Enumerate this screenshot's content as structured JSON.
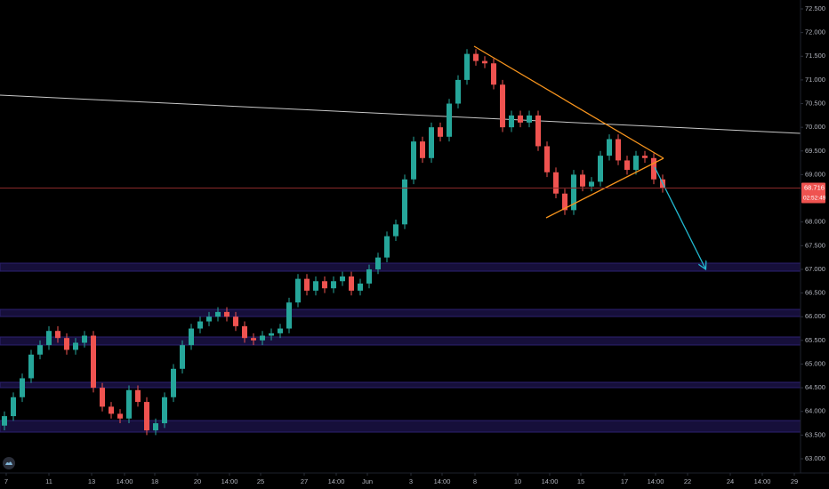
{
  "chart_data": {
    "type": "candlestick",
    "up_color": "#26a69a",
    "down_color": "#ef5350",
    "open": [
      63.7,
      63.9,
      64.3,
      64.7,
      65.2,
      65.4,
      65.7,
      65.55,
      65.3,
      65.45,
      65.6,
      64.5,
      64.1,
      63.95,
      63.85,
      64.45,
      64.2,
      63.6,
      63.75,
      64.3,
      64.9,
      65.4,
      65.75,
      65.9,
      66.0,
      66.1,
      66.0,
      65.8,
      65.55,
      65.5,
      65.6,
      65.65,
      65.75,
      66.3,
      66.8,
      66.55,
      66.75,
      66.6,
      66.75,
      66.85,
      66.55,
      66.7,
      67.0,
      67.25,
      67.7,
      67.95,
      68.9,
      69.7,
      69.35,
      70.0,
      69.8,
      70.5,
      71.0,
      71.55,
      71.4,
      71.35,
      70.9,
      70.0,
      70.25,
      70.1,
      70.25,
      69.6,
      69.05,
      68.6,
      68.25,
      69.0,
      68.75,
      68.85,
      69.4,
      69.75,
      69.3,
      69.1,
      69.4,
      69.35,
      68.9
    ],
    "high": [
      64.0,
      64.4,
      64.8,
      65.3,
      65.5,
      65.8,
      65.8,
      65.65,
      65.55,
      65.7,
      65.7,
      64.6,
      64.2,
      64.05,
      64.55,
      64.55,
      64.3,
      63.85,
      64.4,
      65.0,
      65.5,
      65.85,
      66.0,
      66.1,
      66.2,
      66.2,
      66.1,
      65.9,
      65.65,
      65.7,
      65.75,
      65.85,
      66.4,
      66.9,
      66.9,
      66.85,
      66.85,
      66.85,
      66.95,
      66.95,
      66.8,
      67.1,
      67.35,
      67.8,
      68.05,
      69.0,
      69.8,
      69.8,
      70.1,
      70.1,
      70.6,
      71.1,
      71.65,
      71.65,
      71.5,
      71.45,
      71.0,
      70.35,
      70.35,
      70.35,
      70.35,
      69.7,
      69.15,
      68.7,
      69.1,
      69.1,
      68.95,
      69.5,
      69.85,
      69.85,
      69.4,
      69.5,
      69.5,
      69.45,
      69.0
    ],
    "low": [
      63.6,
      63.8,
      64.2,
      64.6,
      65.1,
      65.3,
      65.45,
      65.2,
      65.2,
      65.35,
      64.4,
      64.0,
      63.85,
      63.75,
      63.75,
      64.1,
      63.5,
      63.5,
      63.65,
      64.2,
      64.8,
      65.3,
      65.65,
      65.8,
      65.9,
      65.9,
      65.7,
      65.45,
      65.4,
      65.4,
      65.5,
      65.55,
      65.65,
      66.2,
      66.45,
      66.45,
      66.5,
      66.5,
      66.65,
      66.45,
      66.45,
      66.6,
      66.9,
      67.15,
      67.6,
      67.85,
      68.8,
      69.25,
      69.25,
      69.7,
      69.7,
      70.4,
      70.9,
      71.3,
      71.25,
      70.8,
      69.9,
      69.9,
      70.0,
      70.0,
      69.5,
      68.95,
      68.5,
      68.15,
      68.15,
      68.65,
      68.65,
      68.75,
      69.3,
      69.2,
      69.0,
      69.0,
      69.25,
      68.8,
      68.62
    ],
    "close": [
      63.9,
      64.3,
      64.7,
      65.2,
      65.4,
      65.7,
      65.55,
      65.3,
      65.45,
      65.6,
      64.5,
      64.1,
      63.95,
      63.85,
      64.45,
      64.2,
      63.6,
      63.75,
      64.3,
      64.9,
      65.4,
      65.75,
      65.9,
      66.0,
      66.1,
      66.0,
      65.8,
      65.55,
      65.5,
      65.6,
      65.65,
      65.75,
      66.3,
      66.8,
      66.55,
      66.75,
      66.6,
      66.75,
      66.85,
      66.55,
      66.7,
      67.0,
      67.25,
      67.7,
      67.95,
      68.9,
      69.7,
      69.35,
      70.0,
      69.8,
      70.5,
      71.0,
      71.55,
      71.4,
      71.35,
      70.9,
      70.0,
      70.25,
      70.1,
      70.25,
      69.6,
      69.05,
      68.6,
      68.25,
      69.0,
      68.75,
      68.85,
      69.4,
      69.75,
      69.3,
      69.1,
      69.4,
      69.35,
      68.9,
      68.72
    ],
    "last_price": 68.716,
    "countdown": "02:52:49",
    "ylim": [
      63,
      72.5
    ],
    "yticks": [
      {
        "value": 72.5,
        "label": "72.500"
      },
      {
        "value": 72,
        "label": "72.000"
      },
      {
        "value": 71.5,
        "label": "71.500"
      },
      {
        "value": 71,
        "label": "71.000"
      },
      {
        "value": 70.5,
        "label": "70.500"
      },
      {
        "value": 70,
        "label": "70.000"
      },
      {
        "value": 69.5,
        "label": "69.500"
      },
      {
        "value": 69,
        "label": "69.000"
      },
      {
        "value": 68,
        "label": "68.000"
      },
      {
        "value": 67.5,
        "label": "67.500"
      },
      {
        "value": 67,
        "label": "67.000"
      },
      {
        "value": 66.5,
        "label": "66.500"
      },
      {
        "value": 66,
        "label": "66.000"
      },
      {
        "value": 65.5,
        "label": "65.500"
      },
      {
        "value": 65,
        "label": "65.000"
      },
      {
        "value": 64.5,
        "label": "64.500"
      },
      {
        "value": 64,
        "label": "64.000"
      },
      {
        "value": 63.5,
        "label": "63.500"
      },
      {
        "value": 63,
        "label": "63.000"
      }
    ],
    "xlim": [
      -0.5,
      89.5
    ],
    "xticks": [
      {
        "value": 0.2,
        "label": "7"
      },
      {
        "value": 5,
        "label": "11"
      },
      {
        "value": 9.8,
        "label": "13"
      },
      {
        "value": 13.5,
        "label": "14:00"
      },
      {
        "value": 16.9,
        "label": "18"
      },
      {
        "value": 21.7,
        "label": "20"
      },
      {
        "value": 25.3,
        "label": "14:00"
      },
      {
        "value": 28.8,
        "label": "25"
      },
      {
        "value": 33.7,
        "label": "27"
      },
      {
        "value": 37.3,
        "label": "14:00"
      },
      {
        "value": 40.8,
        "label": "Jun"
      },
      {
        "value": 45.7,
        "label": "3"
      },
      {
        "value": 49.2,
        "label": "14:00"
      },
      {
        "value": 52.9,
        "label": "8"
      },
      {
        "value": 57.7,
        "label": "10"
      },
      {
        "value": 61.3,
        "label": "14:00"
      },
      {
        "value": 64.8,
        "label": "15"
      },
      {
        "value": 69.7,
        "label": "17"
      },
      {
        "value": 73.2,
        "label": "14:00"
      },
      {
        "value": 76.8,
        "label": "22"
      },
      {
        "value": 81.6,
        "label": "24"
      },
      {
        "value": 85.2,
        "label": "14:00"
      },
      {
        "value": 88.8,
        "label": "29"
      }
    ]
  }
}
